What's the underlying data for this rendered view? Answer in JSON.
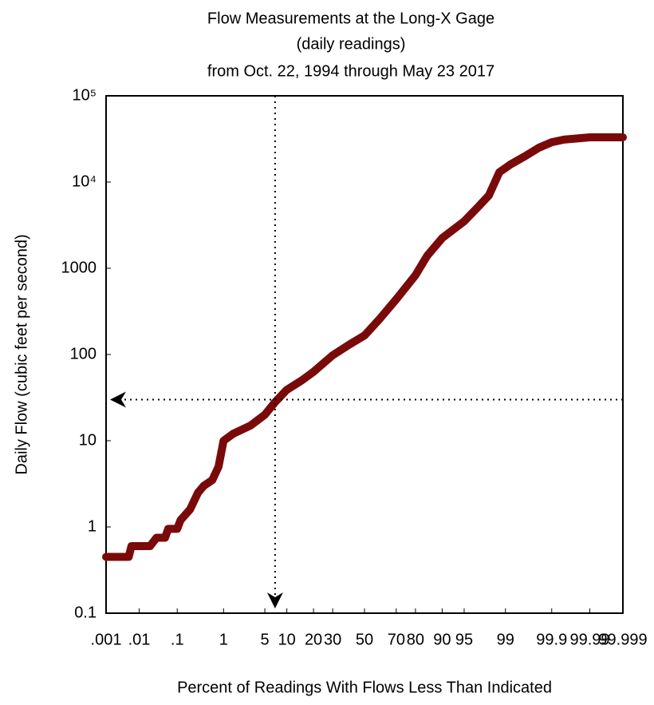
{
  "chart_data": {
    "type": "line",
    "title": [
      "Flow Measurements at the Long-X Gage",
      "(daily readings)",
      "from Oct. 22, 1994 through May 23 2017"
    ],
    "xlabel": "Percent of Readings With Flows  Less Than Indicated",
    "ylabel": "Daily Flow (cubic feet per second)",
    "xscale": "probability",
    "yscale": "log",
    "xlim": [
      0.001,
      99.999
    ],
    "ylim": [
      0.1,
      100000
    ],
    "xticks": [
      {
        "value": 0.001,
        "label": ".001"
      },
      {
        "value": 0.01,
        "label": ".01"
      },
      {
        "value": 0.1,
        "label": ".1"
      },
      1,
      5,
      10,
      20,
      30,
      50,
      70,
      80,
      90,
      95,
      99,
      99.9,
      99.99,
      99.999
    ],
    "yticks": [
      0.1,
      1,
      10,
      100,
      1000,
      {
        "value": 10000,
        "label": "10⁴"
      },
      {
        "value": 100000,
        "label": "10⁵"
      }
    ],
    "series": [
      {
        "color": "#7a0a0a",
        "x": [
          0.001,
          0.005,
          0.006,
          0.02,
          0.03,
          0.05,
          0.06,
          0.1,
          0.12,
          0.2,
          0.3,
          0.4,
          0.6,
          0.8,
          1,
          1.5,
          3,
          5,
          7,
          10,
          15,
          20,
          30,
          40,
          50,
          60,
          70,
          80,
          85,
          90,
          95,
          97,
          98,
          98.7,
          99.2,
          99.6,
          99.8,
          99.9,
          99.95,
          99.99,
          99.999
        ],
        "values": [
          0.45,
          0.45,
          0.6,
          0.6,
          0.75,
          0.75,
          0.95,
          0.95,
          1.2,
          1.6,
          2.5,
          3,
          3.5,
          5,
          10,
          12,
          15,
          20,
          28,
          39,
          50,
          63,
          98,
          130,
          166,
          260,
          436,
          830,
          1400,
          2240,
          3500,
          5200,
          7000,
          13000,
          16000,
          20000,
          25000,
          29000,
          31000,
          33000,
          33000
        ]
      }
    ],
    "reference_lines": {
      "x": 7,
      "y": 30
    }
  }
}
